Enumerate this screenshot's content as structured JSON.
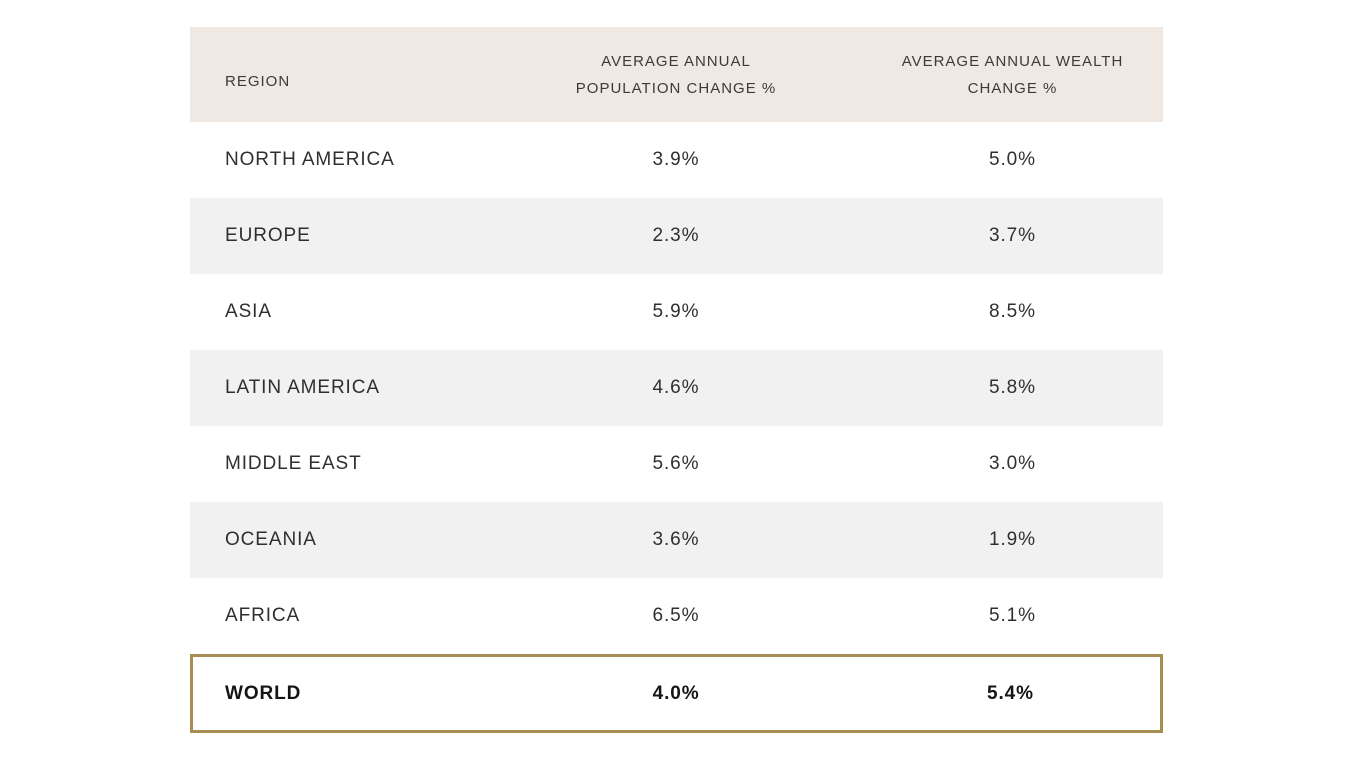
{
  "chart_data": {
    "type": "table",
    "columns": [
      "REGION",
      "AVERAGE ANNUAL POPULATION CHANGE %",
      "AVERAGE ANNUAL WEALTH CHANGE %"
    ],
    "rows": [
      [
        "NORTH AMERICA",
        "3.9%",
        "5.0%"
      ],
      [
        "EUROPE",
        "2.3%",
        "3.7%"
      ],
      [
        "ASIA",
        "5.9%",
        "8.5%"
      ],
      [
        "LATIN AMERICA",
        "4.6%",
        "5.8%"
      ],
      [
        "MIDDLE EAST",
        "5.6%",
        "3.0%"
      ],
      [
        "OCEANIA",
        "3.6%",
        "1.9%"
      ],
      [
        "AFRICA",
        "6.5%",
        "5.1%"
      ],
      [
        "WORLD",
        "4.0%",
        "5.4%"
      ]
    ],
    "highlight_row": "WORLD",
    "layout_hints": {
      "alternating_row_stripes": true,
      "header_bg": "#efe8e3",
      "alt_row_bg": "#f1f1f1",
      "highlight_border_color": "#a58e50",
      "legend": "none",
      "grid": "off"
    }
  }
}
